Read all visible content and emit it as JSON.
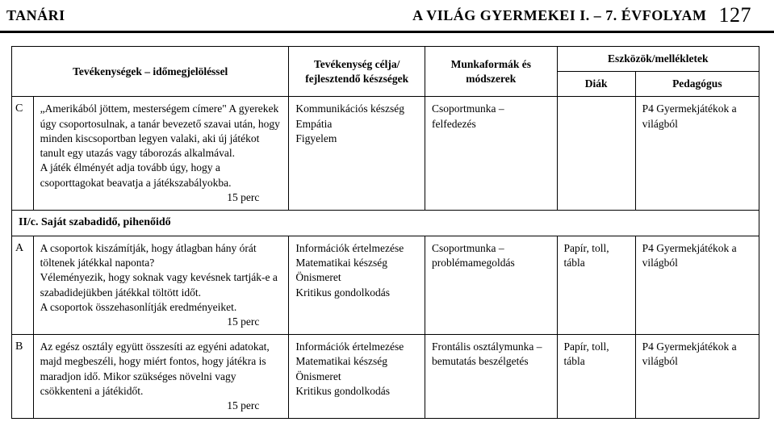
{
  "header": {
    "left": "TANÁRI",
    "right_title": "A VILÁG GYERMEKEI I. – 7. ÉVFOLYAM",
    "page_number": "127"
  },
  "table": {
    "head": {
      "col1": "Tevékenységek – időmegjelöléssel",
      "col2": "Tevékenység célja/ fejlesztendő készségek",
      "col3": "Munkaformák és módszerek",
      "col4_group": "Eszközök/mellékletek",
      "col4a": "Diák",
      "col4b": "Pedagógus"
    },
    "rows": [
      {
        "marker": "C",
        "activity": "„Amerikából jöttem, mesterségem címere\" A gyerekek úgy csoportosulnak, a tanár bevezető szavai után, hogy minden kiscsoportban legyen valaki, aki új játékot tanult egy utazás vagy táborozás alkalmával.\nA játék élményét adja tovább úgy, hogy a csoporttagokat beavatja a játékszabályokba.",
        "time": "15 perc",
        "goal": "Kommunikációs készség\nEmpátia\nFigyelem",
        "method": "Csoportmunka – felfedezés",
        "diak": "",
        "ped": "P4 Gyermekjátékok a világból"
      }
    ],
    "section": "II/c. Saját szabadidő, pihenőidő",
    "rows2": [
      {
        "marker": "A",
        "activity": "A csoportok kiszámítják, hogy átlagban hány órát töltenek játékkal naponta?\nVéleményezik, hogy soknak vagy kevésnek tartják-e a szabadidejükben játékkal töltött időt.\nA csoportok összehasonlítják eredményeiket.",
        "time": "15 perc",
        "goal": "Információk értelmezése\nMatematikai készség\nÖnismeret\nKritikus gondolkodás",
        "method": "Csoportmunka – problémamegoldás",
        "diak": "Papír, toll, tábla",
        "ped": "P4 Gyermekjátékok a világból"
      },
      {
        "marker": "B",
        "activity": "Az egész osztály együtt összesíti az egyéni adatokat, majd megbeszéli, hogy miért fontos, hogy játékra is maradjon idő. Mikor szükséges növelni vagy csökkenteni a játékidőt.",
        "time": "15 perc",
        "goal": "Információk értelmezése\nMatematikai készség\nÖnismeret\nKritikus gondolkodás",
        "method": "Frontális osztálymunka – bemutatás beszélgetés",
        "diak": "Papír, toll, tábla",
        "ped": "P4 Gyermekjátékok a világból"
      }
    ]
  }
}
